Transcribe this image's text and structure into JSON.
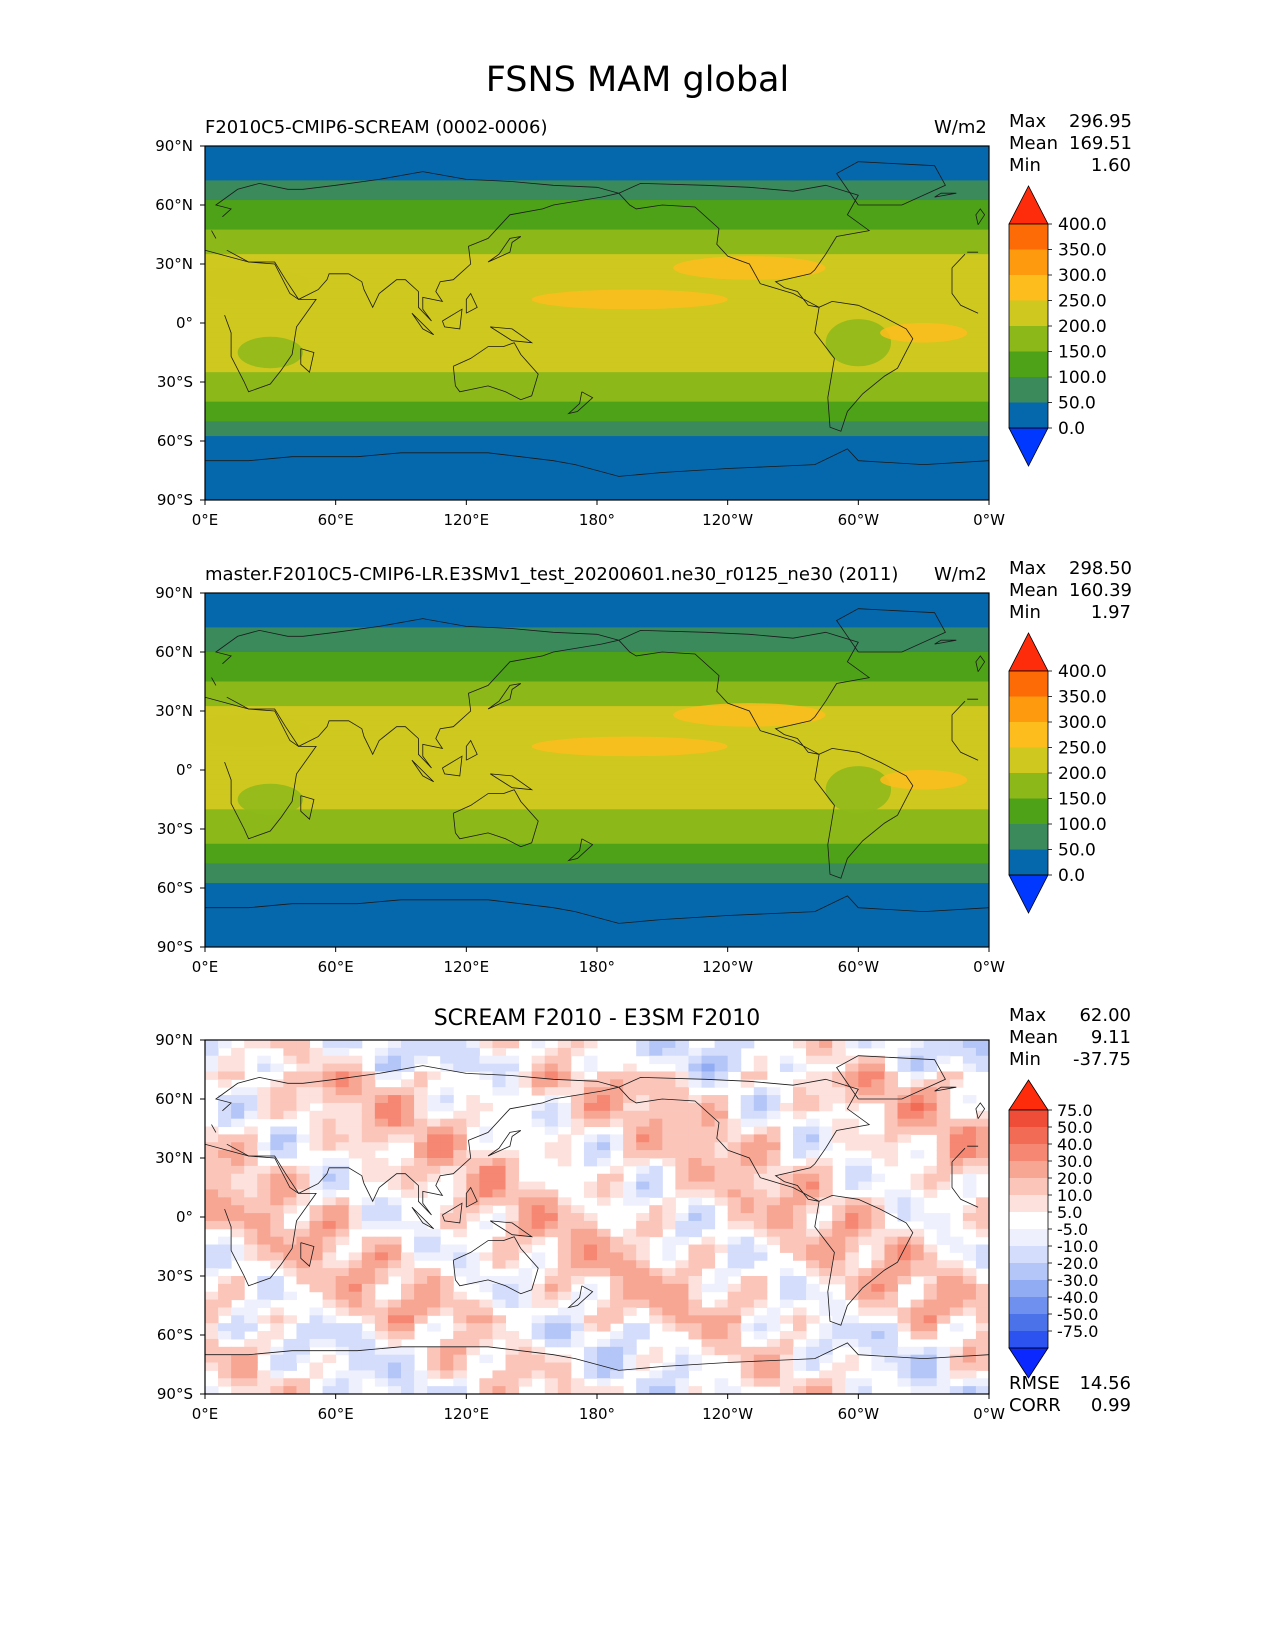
{
  "suptitle": "FSNS MAM global",
  "colors": {
    "bins1": [
      "#0038ff",
      "#0668ac",
      "#3a8a5c",
      "#4ea218",
      "#8db81a",
      "#cec81f",
      "#fdbd1d",
      "#fd9a0e",
      "#fd6b06",
      "#ff2c0c"
    ],
    "bins3": [
      "#0a28ff",
      "#2c52f0",
      "#4c72ea",
      "#6f90ef",
      "#92acf4",
      "#b4c6f8",
      "#d4ddfb",
      "#eef1fd",
      "#ffffff",
      "#fde1dc",
      "#fbc5ba",
      "#f8a694",
      "#f58773",
      "#f26b55",
      "#ef4d38",
      "#ff2c0c"
    ],
    "coast": "#1a1a1a"
  },
  "panels": [
    {
      "left_title": "F2010C5-CMIP6-SCREAM (0002-0006)",
      "units": "W/m2",
      "center_title": "",
      "stats": {
        "max_label": "Max",
        "max": "296.95",
        "mean_label": "Mean",
        "mean": "169.51",
        "min_label": "Min",
        "min": "1.60"
      },
      "colorbar": {
        "levels": [
          "400.0",
          "350.0",
          "300.0",
          "250.0",
          "200.0",
          "150.0",
          "100.0",
          "50.0",
          "0.0"
        ]
      }
    },
    {
      "left_title": "master.F2010C5-CMIP6-LR.E3SMv1_test_20200601.ne30_r0125_ne30 (2011)",
      "units": "W/m2",
      "center_title": "",
      "stats": {
        "max_label": "Max",
        "max": "298.50",
        "mean_label": "Mean",
        "mean": "160.39",
        "min_label": "Min",
        "min": "1.97"
      },
      "colorbar": {
        "levels": [
          "400.0",
          "350.0",
          "300.0",
          "250.0",
          "200.0",
          "150.0",
          "100.0",
          "50.0",
          "0.0"
        ]
      }
    },
    {
      "left_title": "",
      "units": "",
      "center_title": "SCREAM F2010 - E3SM F2010",
      "stats": {
        "max_label": "Max",
        "max": "62.00",
        "mean_label": "Mean",
        "mean": "9.11",
        "min_label": "Min",
        "min": "-37.75"
      },
      "colorbar": {
        "levels": [
          "75.0",
          "50.0",
          "40.0",
          "30.0",
          "20.0",
          "10.0",
          "5.0",
          "-5.0",
          "-10.0",
          "-20.0",
          "-30.0",
          "-40.0",
          "-50.0",
          "-75.0"
        ]
      },
      "extra": {
        "rmse_label": "RMSE",
        "rmse": "14.56",
        "corr_label": "CORR",
        "corr": "0.99"
      }
    }
  ],
  "chart_data": [
    {
      "type": "heatmap",
      "title": "F2010C5-CMIP6-SCREAM (0002-0006)",
      "units": "W/m2",
      "x": [
        "0°E",
        "60°E",
        "120°E",
        "180°",
        "120°W",
        "60°W",
        "0°W"
      ],
      "y": [
        "90°N",
        "60°N",
        "30°N",
        "0°",
        "30°S",
        "60°S",
        "90°S"
      ],
      "lon_range": [
        0,
        360
      ],
      "lat_range": [
        -90,
        90
      ],
      "contour_levels": [
        0,
        50,
        100,
        150,
        200,
        250,
        300,
        350,
        400
      ],
      "stats": {
        "max": 296.95,
        "mean": 169.51,
        "min": 1.6
      },
      "zonal_mean_profile": [
        [
          90,
          25
        ],
        [
          75,
          40
        ],
        [
          60,
          110
        ],
        [
          45,
          160
        ],
        [
          30,
          215
        ],
        [
          15,
          235
        ],
        [
          0,
          210
        ],
        [
          -15,
          225
        ],
        [
          -30,
          185
        ],
        [
          -45,
          125
        ],
        [
          -60,
          40
        ],
        [
          -75,
          15
        ],
        [
          -90,
          10
        ]
      ]
    },
    {
      "type": "heatmap",
      "title": "master.F2010C5-CMIP6-LR.E3SMv1_test_20200601.ne30_r0125_ne30 (2011)",
      "units": "W/m2",
      "x": [
        "0°E",
        "60°E",
        "120°E",
        "180°",
        "120°W",
        "60°W",
        "0°W"
      ],
      "y": [
        "90°N",
        "60°N",
        "30°N",
        "0°",
        "30°S",
        "60°S",
        "90°S"
      ],
      "lon_range": [
        0,
        360
      ],
      "lat_range": [
        -90,
        90
      ],
      "contour_levels": [
        0,
        50,
        100,
        150,
        200,
        250,
        300,
        350,
        400
      ],
      "stats": {
        "max": 298.5,
        "mean": 160.39,
        "min": 1.97
      },
      "zonal_mean_profile": [
        [
          90,
          25
        ],
        [
          75,
          40
        ],
        [
          60,
          100
        ],
        [
          45,
          150
        ],
        [
          30,
          205
        ],
        [
          15,
          225
        ],
        [
          0,
          205
        ],
        [
          -15,
          215
        ],
        [
          -30,
          175
        ],
        [
          -45,
          115
        ],
        [
          -60,
          35
        ],
        [
          -75,
          15
        ],
        [
          -90,
          10
        ]
      ]
    },
    {
      "type": "heatmap",
      "title": "SCREAM F2010 - E3SM F2010",
      "x": [
        "0°E",
        "60°E",
        "120°E",
        "180°",
        "120°W",
        "60°W",
        "0°W"
      ],
      "y": [
        "90°N",
        "60°N",
        "30°N",
        "0°",
        "30°S",
        "60°S",
        "90°S"
      ],
      "lon_range": [
        0,
        360
      ],
      "lat_range": [
        -90,
        90
      ],
      "contour_levels": [
        -75,
        -50,
        -40,
        -30,
        -20,
        -10,
        -5,
        5,
        10,
        20,
        30,
        40,
        50,
        75
      ],
      "stats": {
        "max": 62.0,
        "mean": 9.11,
        "min": -37.75,
        "rmse": 14.56,
        "corr": 0.99
      },
      "zonal_mean_profile": [
        [
          90,
          0
        ],
        [
          75,
          3
        ],
        [
          60,
          12
        ],
        [
          45,
          18
        ],
        [
          30,
          14
        ],
        [
          15,
          8
        ],
        [
          0,
          6
        ],
        [
          -15,
          12
        ],
        [
          -30,
          15
        ],
        [
          -45,
          18
        ],
        [
          -60,
          3
        ],
        [
          -75,
          0
        ],
        [
          -90,
          0
        ]
      ]
    }
  ]
}
